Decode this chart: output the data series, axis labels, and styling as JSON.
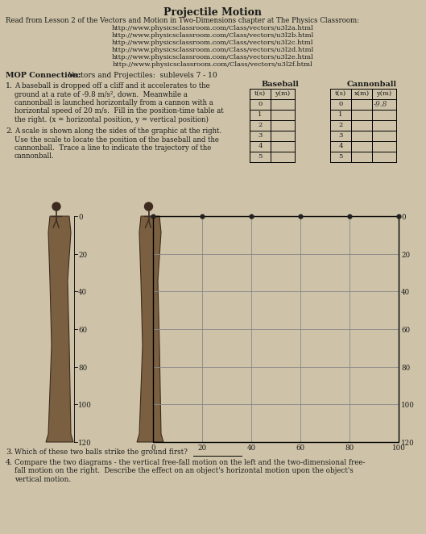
{
  "title": "Projectile Motion",
  "bg_color": "#cec3a8",
  "text_color": "#1a1a1a",
  "read_from": "Read from Lesson 2 of the Vectors and Motion in Two-Dimensions chapter at The Physics Classroom:",
  "urls": [
    "http://www.physicsclassroom.com/Class/vectors/u3l2a.html",
    "http://www.physicsclassroom.com/Class/vectors/u3l2b.html",
    "http://www.physicsclassroom.com/Class/vectors/u3l2c.html",
    "http://www.physicsclassroom.com/Class/vectors/u3l2d.html",
    "http://www.physicsclassroom.com/Class/vectors/u3l2e.html",
    "http://www.physicsclassroom.com/Class/vectors/u3l2f.html"
  ],
  "mop_label": "MOP Connection:",
  "mop_text": "Vectors and Projectiles:  sublevels 7 - 10",
  "q1_number": "1.",
  "q1_lines": [
    "A baseball is dropped off a cliff and it accelerates to the",
    "ground at a rate of -9.8 m/s², down.  Meanwhile a",
    "cannonball is launched horizontally from a cannon with a",
    "horizontal speed of 20 m/s.  Fill in the position-time table at",
    "the right. (x = horizontal position, y = vertical position)"
  ],
  "q2_number": "2.",
  "q2_lines": [
    "A scale is shown along the sides of the graphic at the right.",
    "Use the scale to locate the position of the baseball and the",
    "cannonball.  Trace a line to indicate the trajectory of the",
    "cannonball."
  ],
  "baseball_header": "Baseball",
  "cannonball_header": "Cannonball",
  "table_rows": [
    0,
    1,
    2,
    3,
    4,
    5
  ],
  "cannonball_y0_text": "-9.8",
  "left_scale": [
    0,
    20,
    40,
    60,
    80,
    100,
    120
  ],
  "right_scale": [
    0,
    20,
    40,
    60,
    80,
    100,
    120
  ],
  "bottom_scale": [
    0,
    20,
    40,
    60,
    80,
    100
  ],
  "q3_number": "3.",
  "q3_text": "Which of these two balls strike the ground first?",
  "q4_number": "4.",
  "q4_lines": [
    "Compare the two diagrams - the vertical free-fall motion on the left and the two-dimensional free-",
    "fall motion on the right.  Describe the effect on an object's horizontal motion upon the object's",
    "vertical motion."
  ],
  "cliff_color": "#7a6040",
  "cliff_edge_color": "#3d2b1f",
  "grid_line_color": "#888888",
  "dot_color": "#222222"
}
